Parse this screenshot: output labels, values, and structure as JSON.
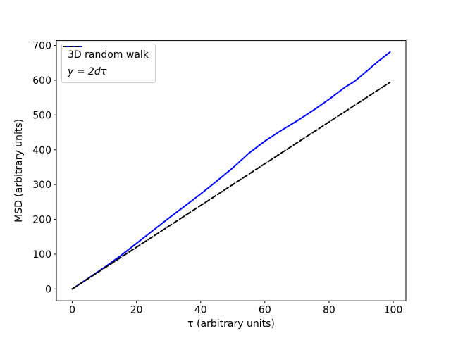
{
  "figure": {
    "background": "#ffffff"
  },
  "chart_data": {
    "type": "line",
    "title": "",
    "xlabel": "τ (arbitrary units)",
    "ylabel": "MSD (arbitrary units)",
    "xlim": [
      -4.95,
      103.95
    ],
    "ylim": [
      -34,
      714
    ],
    "xticks": [
      0,
      20,
      40,
      60,
      80,
      100
    ],
    "yticks": [
      0,
      100,
      200,
      300,
      400,
      500,
      600,
      700
    ],
    "grid": false,
    "legend": {
      "position": "upper-left",
      "border_color": "#cccccc",
      "background": "#ffffff"
    },
    "series": [
      {
        "name": "3D random walk",
        "color": "#0000ff",
        "line_style": "solid",
        "line_width": 2,
        "points": [
          [
            0,
            0
          ],
          [
            5,
            31
          ],
          [
            10,
            62
          ],
          [
            15,
            95
          ],
          [
            20,
            131
          ],
          [
            25,
            167
          ],
          [
            30,
            203
          ],
          [
            35,
            238
          ],
          [
            40,
            273
          ],
          [
            45,
            310
          ],
          [
            50,
            348
          ],
          [
            55,
            390
          ],
          [
            60,
            425
          ],
          [
            65,
            455
          ],
          [
            70,
            483
          ],
          [
            75,
            513
          ],
          [
            80,
            545
          ],
          [
            85,
            580
          ],
          [
            88,
            597
          ],
          [
            92,
            628
          ],
          [
            95,
            652
          ],
          [
            99,
            681
          ]
        ]
      },
      {
        "name": "y = 2dτ",
        "color": "#000000",
        "line_style": "dashed",
        "line_width": 2,
        "points": [
          [
            0,
            0
          ],
          [
            99,
            594
          ]
        ]
      }
    ]
  }
}
